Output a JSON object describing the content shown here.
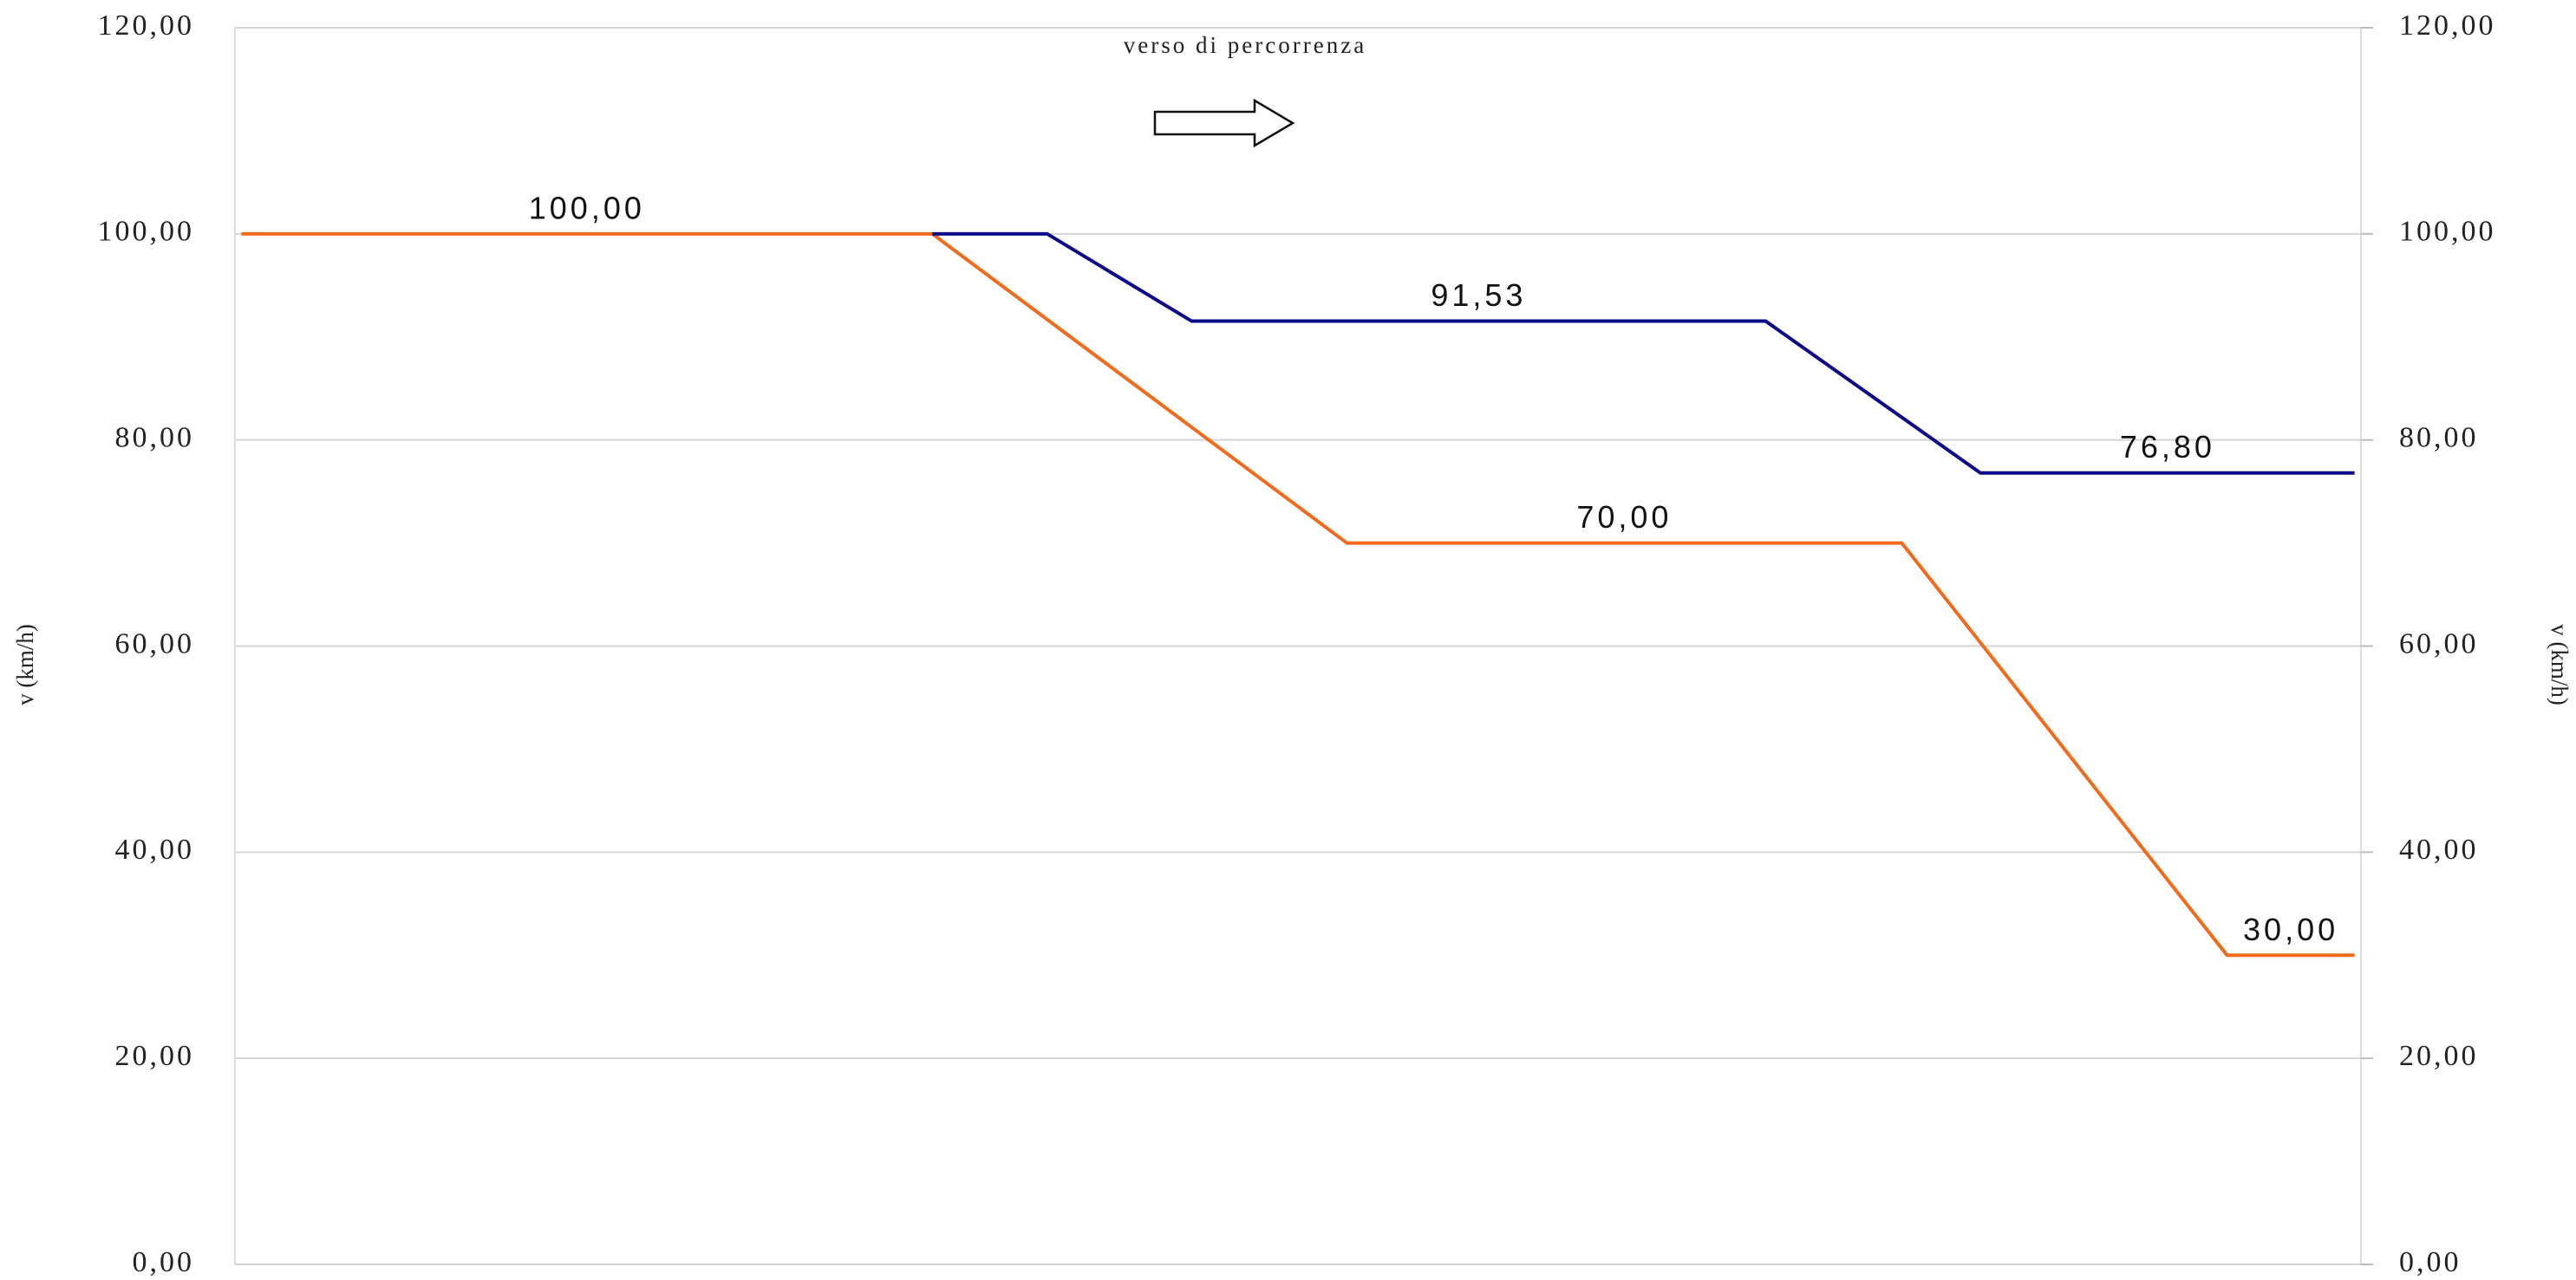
{
  "chart_data": {
    "type": "line",
    "annotation": "verso di percorrenza",
    "ylabel": "v (km/h)",
    "y2label": "v (km/h)",
    "xlim": [
      0,
      100
    ],
    "ylim": [
      0,
      120
    ],
    "yticks": [
      {
        "value": 0,
        "label": "0,00"
      },
      {
        "value": 20,
        "label": "20,00"
      },
      {
        "value": 40,
        "label": "40,00"
      },
      {
        "value": 60,
        "label": "60,00"
      },
      {
        "value": 80,
        "label": "80,00"
      },
      {
        "value": 100,
        "label": "100,00"
      },
      {
        "value": 120,
        "label": "120,00"
      }
    ],
    "y2lim": [
      0,
      120
    ],
    "y2ticks": [
      {
        "value": 0,
        "label": "0,00"
      },
      {
        "value": 20,
        "label": "20,00"
      },
      {
        "value": 40,
        "label": "40,00"
      },
      {
        "value": 60,
        "label": "60,00"
      },
      {
        "value": 80,
        "label": "80,00"
      },
      {
        "value": 100,
        "label": "100,00"
      },
      {
        "value": 120,
        "label": "120,00"
      }
    ],
    "grid": true,
    "series": [
      {
        "color": "#f26b1d",
        "x": [
          0.3,
          32.8,
          52.3,
          78.4,
          93.7,
          99.7
        ],
        "values": [
          100,
          100,
          70,
          70,
          30,
          30
        ],
        "value_labels": [
          "100,00",
          null,
          "70,00",
          null,
          "30,00",
          null
        ]
      },
      {
        "color": "#0a0a8a",
        "x": [
          32.8,
          38.2,
          45.0,
          72.0,
          82.1,
          99.7
        ],
        "values": [
          100,
          100,
          91.53,
          91.53,
          76.8,
          76.8
        ],
        "value_labels": [
          null,
          null,
          "91,53",
          null,
          "76,80",
          null
        ]
      }
    ]
  }
}
